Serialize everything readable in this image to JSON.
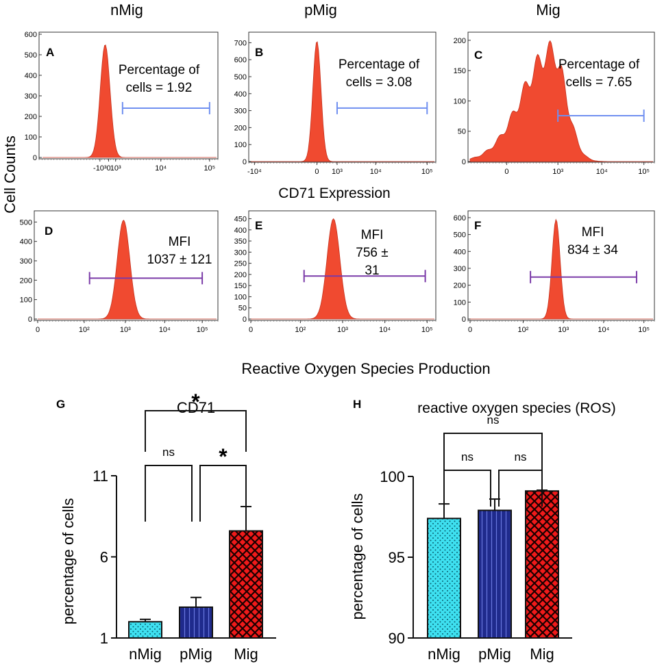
{
  "figure": {
    "column_titles": [
      "nMig",
      "pMig",
      "Mig"
    ],
    "y_label": "Cell Counts",
    "row1_caption": "CD71 Expression",
    "row2_caption": "Reactive Oxygen Species  Production",
    "colors": {
      "histogram": "#f04a30",
      "gate_blue": "#6f8ff0",
      "gate_purple": "#7a3aa8"
    }
  },
  "chart_data": [
    {
      "type": "histogram",
      "panel": "A",
      "group": "nMig",
      "row": "CD71",
      "y_ticks": [
        0,
        100,
        200,
        300,
        400,
        500,
        600
      ],
      "y_tick_labels": [
        "0",
        "100",
        "200",
        "300",
        "400",
        "500",
        "600"
      ],
      "ylim": [
        0,
        600
      ],
      "x_tick_labels": [
        "-10³",
        "0",
        "10³",
        "10⁴",
        "10⁵"
      ],
      "peak_count": 550,
      "annotation": [
        "Percentage of",
        "cells = 1.92"
      ],
      "gate_color": "#6f8ff0"
    },
    {
      "type": "histogram",
      "panel": "B",
      "group": "pMig",
      "row": "CD71",
      "y_ticks": [
        0,
        100,
        200,
        300,
        400,
        500,
        600,
        700
      ],
      "y_tick_labels": [
        "0",
        "100",
        "200",
        "300",
        "400",
        "500",
        "600",
        "700"
      ],
      "ylim": [
        0,
        750
      ],
      "x_tick_labels": [
        "-10⁴",
        "0",
        "10³",
        "10⁴",
        "10⁵"
      ],
      "peak_count": 710,
      "annotation": [
        "Percentage of",
        "cells = 3.08"
      ],
      "gate_color": "#6f8ff0"
    },
    {
      "type": "histogram",
      "panel": "C",
      "group": "Mig",
      "row": "CD71",
      "y_ticks": [
        0,
        50,
        100,
        150,
        200
      ],
      "y_tick_labels": [
        "0",
        "50",
        "100",
        "150",
        "200"
      ],
      "ylim": [
        0,
        210
      ],
      "x_tick_labels": [
        "0",
        "10³",
        "10⁴",
        "10⁵"
      ],
      "peak_count": 200,
      "annotation": [
        "Percentage of",
        "cells = 7.65"
      ],
      "gate_color": "#6f8ff0"
    },
    {
      "type": "histogram",
      "panel": "D",
      "group": "nMig",
      "row": "ROS",
      "y_ticks": [
        0,
        100,
        200,
        300,
        400,
        500
      ],
      "y_tick_labels": [
        "0",
        "100",
        "200",
        "300",
        "400",
        "500"
      ],
      "ylim": [
        0,
        540
      ],
      "x_tick_labels": [
        "0",
        "10²",
        "10³",
        "10⁴",
        "10⁵"
      ],
      "peak_count": 510,
      "annotation": [
        "MFI",
        "1037 ± 121"
      ],
      "gate_color": "#7a3aa8"
    },
    {
      "type": "histogram",
      "panel": "E",
      "group": "pMig",
      "row": "ROS",
      "y_ticks": [
        0,
        50,
        100,
        150,
        200,
        250,
        300,
        350,
        400,
        450
      ],
      "y_tick_labels": [
        "0",
        "50",
        "100",
        "150",
        "200",
        "250",
        "300",
        "350",
        "400",
        "450"
      ],
      "ylim": [
        0,
        470
      ],
      "x_tick_labels": [
        "0",
        "10²",
        "10³",
        "10⁴",
        "10⁵"
      ],
      "peak_count": 450,
      "annotation": [
        "MFI",
        "756 ±",
        "31"
      ],
      "gate_color": "#7a3aa8"
    },
    {
      "type": "histogram",
      "panel": "F",
      "group": "Mig",
      "row": "ROS",
      "y_ticks": [
        0,
        100,
        200,
        300,
        400,
        500,
        600
      ],
      "y_tick_labels": [
        "0",
        "100",
        "200",
        "300",
        "400",
        "500",
        "600"
      ],
      "ylim": [
        0,
        620
      ],
      "x_tick_labels": [
        "0",
        "10²",
        "10³",
        "10⁴",
        "10⁵"
      ],
      "peak_count": 590,
      "annotation": [
        "MFI",
        "834 ± 34"
      ],
      "gate_color": "#7a3aa8"
    },
    {
      "type": "bar",
      "panel": "G",
      "title": "CD71",
      "categories": [
        "nMig",
        "pMig",
        "Mig"
      ],
      "values": [
        2.0,
        2.9,
        7.6
      ],
      "errors": [
        0.15,
        0.6,
        1.5
      ],
      "ylim": [
        1,
        11
      ],
      "y_ticks": [
        1,
        6,
        11
      ],
      "y_tick_labels": [
        "1",
        "6",
        "11"
      ],
      "ylabel": "percentage of cells",
      "bar_colors": [
        "#3ee0f0",
        "#1f2a8c",
        "#f01a1a"
      ],
      "patterns": [
        "dots",
        "vlines",
        "crosshatch"
      ],
      "comparisons": [
        {
          "pair": [
            0,
            2
          ],
          "label": "*"
        },
        {
          "pair": [
            0,
            1
          ],
          "label": "ns"
        },
        {
          "pair": [
            1,
            2
          ],
          "label": "*"
        }
      ]
    },
    {
      "type": "bar",
      "panel": "H",
      "title": "reactive oxygen species (ROS)",
      "categories": [
        "nMig",
        "pMig",
        "Mig"
      ],
      "values": [
        97.4,
        97.9,
        99.1
      ],
      "errors": [
        0.9,
        0.7,
        0.05
      ],
      "ylim": [
        90,
        100
      ],
      "y_ticks": [
        90,
        95,
        100
      ],
      "y_tick_labels": [
        "90",
        "95",
        "100"
      ],
      "ylabel": "percentage of cells",
      "bar_colors": [
        "#3ee0f0",
        "#1f2a8c",
        "#f01a1a"
      ],
      "patterns": [
        "dots",
        "vlines",
        "crosshatch"
      ],
      "comparisons": [
        {
          "pair": [
            0,
            2
          ],
          "label": "ns"
        },
        {
          "pair": [
            0,
            1
          ],
          "label": "ns"
        },
        {
          "pair": [
            1,
            2
          ],
          "label": "ns"
        }
      ]
    }
  ]
}
